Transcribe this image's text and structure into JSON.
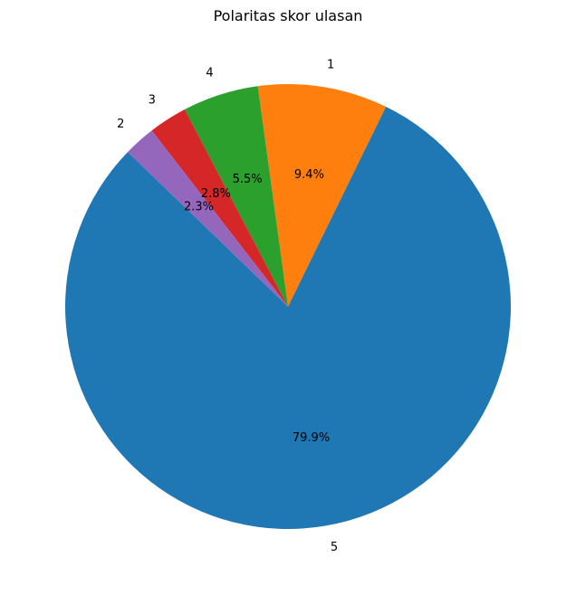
{
  "chart_data": {
    "type": "pie",
    "title": "Polaritas skor ulasan",
    "labels": [
      "5",
      "1",
      "4",
      "3",
      "2"
    ],
    "values": [
      79.9,
      9.4,
      5.5,
      2.8,
      2.3
    ],
    "percent_labels": [
      "79.9%",
      "9.4%",
      "5.5%",
      "2.8%",
      "2.3%"
    ],
    "colors": [
      "#1f77b4",
      "#ff7f0e",
      "#2ca02c",
      "#d62728",
      "#9467bd"
    ],
    "start_angle_deg": 136,
    "direction": "counterclockwise",
    "legend": "none"
  }
}
